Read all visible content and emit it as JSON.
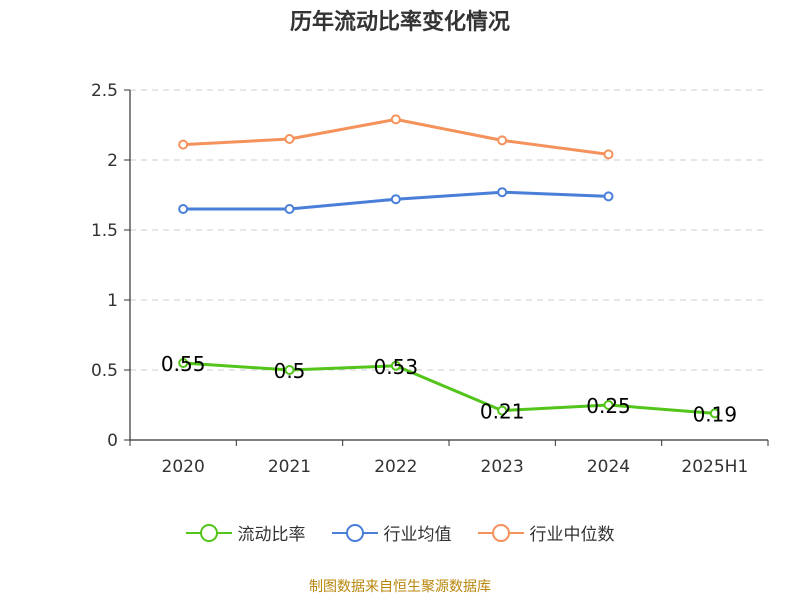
{
  "chart_data": {
    "type": "line",
    "title": "历年流动比率变化情况",
    "categories": [
      "2020",
      "2021",
      "2022",
      "2023",
      "2024",
      "2025H1"
    ],
    "yticks": [
      "0",
      "0.5",
      "1",
      "1.5",
      "2",
      "2.5"
    ],
    "ylim": [
      0,
      2.5
    ],
    "grid": true,
    "legend_position": "bottom",
    "series": [
      {
        "name": "流动比率",
        "color": "#52c41a",
        "values": [
          0.55,
          0.5,
          0.53,
          0.21,
          0.25,
          0.19
        ],
        "labels": [
          "0.55",
          "0.5",
          "0.53",
          "0.21",
          "0.25",
          "0.19"
        ]
      },
      {
        "name": "行业均值",
        "color": "#4a7fd9",
        "values": [
          1.65,
          1.65,
          1.72,
          1.77,
          1.74,
          null
        ]
      },
      {
        "name": "行业中位数",
        "color": "#f5915a",
        "values": [
          2.11,
          2.15,
          2.29,
          2.14,
          2.04,
          null
        ]
      }
    ]
  },
  "source_text": "制图数据来自恒生聚源数据库"
}
